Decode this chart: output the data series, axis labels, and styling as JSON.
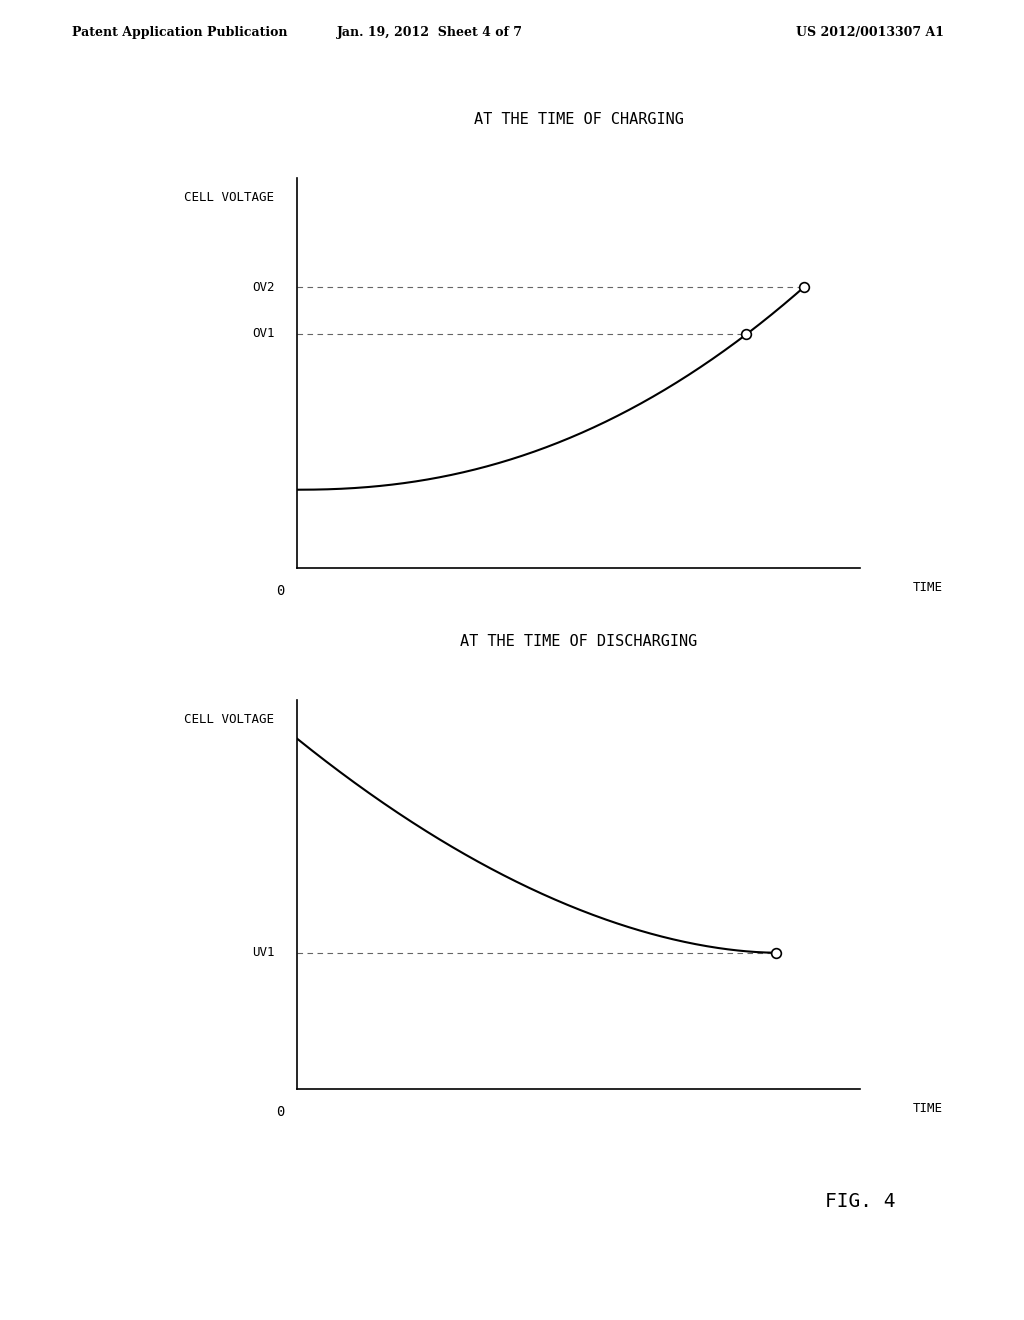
{
  "bg_color": "#ffffff",
  "text_color": "#000000",
  "header_left": "Patent Application Publication",
  "header_center": "Jan. 19, 2012  Sheet 4 of 7",
  "header_right": "US 2012/0013307 A1",
  "fig_label": "FIG. 4",
  "chart1_title": "AT THE TIME OF CHARGING",
  "chart1_ylabel": "CELL VOLTAGE",
  "chart1_xlabel": "TIME",
  "chart1_ov2_label": "OV2",
  "chart1_ov1_label": "OV1",
  "chart2_title": "AT THE TIME OF DISCHARGING",
  "chart2_ylabel": "CELL VOLTAGE",
  "chart2_xlabel": "TIME",
  "chart2_uv1_label": "UV1",
  "line_color": "#000000",
  "dashed_color": "#666666",
  "marker_color": "#000000",
  "header_fontsize": 9,
  "title_fontsize": 11,
  "label_fontsize": 9,
  "axis_label_fontsize": 9,
  "fig4_fontsize": 14
}
